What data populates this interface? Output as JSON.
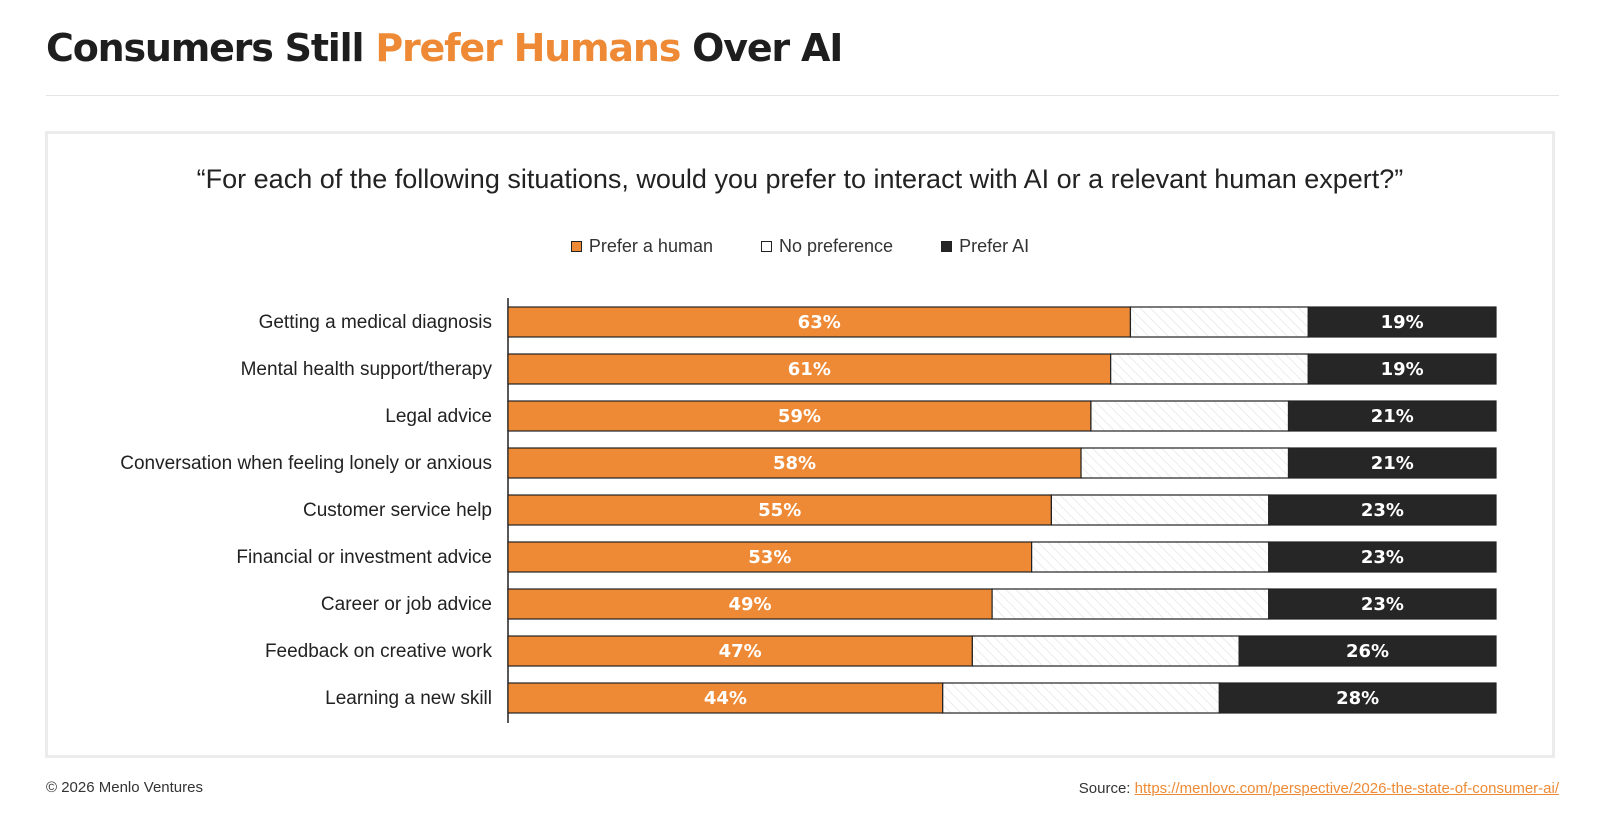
{
  "header": {
    "title_part1": "Consumers Still ",
    "title_accent": "Prefer Humans",
    "title_part2": " Over AI"
  },
  "colors": {
    "accent": "#ee8a35",
    "dark": "#262626",
    "neutral": "#ffffff"
  },
  "chart_data": {
    "type": "bar",
    "orientation": "horizontal",
    "stacked": true,
    "title": "“For each of the following situations, would you prefer to interact with AI or a relevant human expert?”",
    "legend_placement": "top-center",
    "xlim": [
      0,
      100
    ],
    "categories": [
      "Getting a medical diagnosis",
      "Mental health support/therapy",
      "Legal advice",
      "Conversation when feeling lonely or anxious",
      "Customer service help",
      "Financial or investment advice",
      "Career or job advice",
      "Feedback on creative work",
      "Learning a new skill"
    ],
    "series": [
      {
        "name": "Prefer a human",
        "color": "#ee8a35",
        "values": [
          63,
          61,
          59,
          58,
          55,
          53,
          49,
          47,
          44
        ],
        "labels": [
          "63%",
          "61%",
          "59%",
          "58%",
          "55%",
          "53%",
          "49%",
          "47%",
          "44%"
        ]
      },
      {
        "name": "No preference",
        "color": "#ffffff",
        "values": [
          18,
          20,
          20,
          21,
          22,
          24,
          28,
          27,
          28
        ]
      },
      {
        "name": "Prefer AI",
        "color": "#262626",
        "values": [
          19,
          19,
          21,
          21,
          23,
          23,
          23,
          26,
          28
        ],
        "labels": [
          "19%",
          "19%",
          "21%",
          "21%",
          "23%",
          "23%",
          "23%",
          "26%",
          "28%"
        ]
      }
    ]
  },
  "footer": {
    "copyright": "© 2026 Menlo Ventures",
    "source_label": "Source: ",
    "source_url": "https://menlovc.com/perspective/2026-the-state-of-consumer-ai/"
  }
}
